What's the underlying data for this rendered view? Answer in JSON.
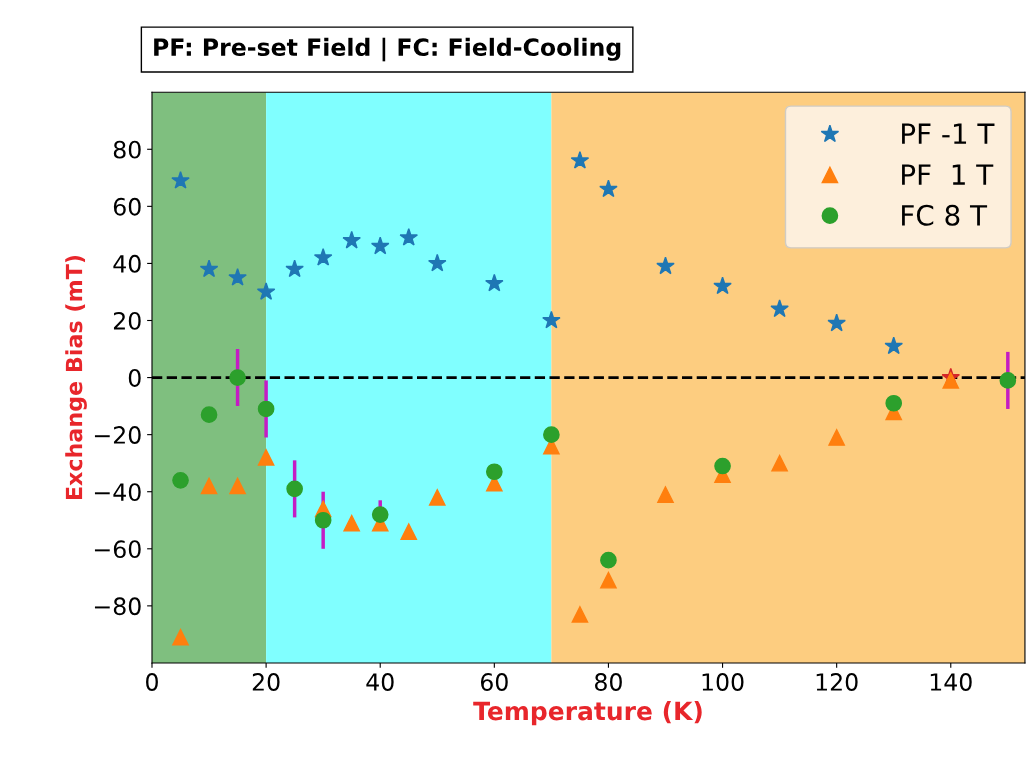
{
  "chart_data": {
    "type": "scatter",
    "title": "PF: Pre-set Field | FC: Field-Cooling",
    "xlabel": "Temperature (K)",
    "ylabel": "Exchange Bias (mT)",
    "xlim": [
      0,
      153
    ],
    "ylim": [
      -100,
      100
    ],
    "xticks": [
      0,
      20,
      40,
      60,
      80,
      100,
      120,
      140
    ],
    "yticks": [
      -80,
      -60,
      -40,
      -20,
      0,
      20,
      40,
      60,
      80
    ],
    "grid": false,
    "legend": "top right",
    "series": [
      {
        "name": "PF -1 T",
        "marker": "star",
        "color": "#1f77b4",
        "colors": [
          "#1f77b4",
          "#1f77b4",
          "#1f77b4",
          "#1f77b4",
          "#1f77b4",
          "#1f77b4",
          "#1f77b4",
          "#1f77b4",
          "#1f77b4",
          "#1f77b4",
          "#1f77b4",
          "#1f77b4",
          "#1f77b4",
          "#1f77b4",
          "#1f77b4",
          "#1f77b4",
          "#1f77b4",
          "#1f77b4",
          "#1f77b4",
          "#d62728"
        ],
        "x": [
          5,
          10,
          15,
          20,
          25,
          30,
          35,
          40,
          45,
          50,
          60,
          70,
          75,
          80,
          90,
          100,
          110,
          120,
          130,
          140
        ],
        "values": [
          69,
          38,
          35,
          30,
          38,
          42,
          48,
          46,
          49,
          40,
          33,
          20,
          76,
          66,
          39,
          32,
          24,
          19,
          11,
          0
        ]
      },
      {
        "name": "PF  1 T",
        "marker": "triangle",
        "color": "#ff7f0e",
        "x": [
          5,
          10,
          15,
          20,
          30,
          35,
          40,
          45,
          50,
          60,
          70,
          75,
          80,
          90,
          100,
          110,
          120,
          130,
          140
        ],
        "values": [
          -91,
          -38,
          -38,
          -28,
          -46,
          -51,
          -51,
          -54,
          -42,
          -37,
          -24,
          -83,
          -71,
          -41,
          -34,
          -30,
          -21,
          -12,
          -1
        ]
      },
      {
        "name": "FC 8 T",
        "marker": "circle",
        "color": "#2ca02c",
        "x": [
          5,
          10,
          15,
          20,
          25,
          30,
          40,
          60,
          70,
          80,
          100,
          130,
          150
        ],
        "values": [
          -36,
          -13,
          0,
          -11,
          -39,
          -50,
          -48,
          -33,
          -20,
          -64,
          -31,
          -9,
          -1
        ],
        "errors": [
          null,
          null,
          10,
          10,
          10,
          10,
          5,
          null,
          null,
          null,
          null,
          null,
          10
        ]
      }
    ],
    "ref_lines": [
      {
        "axis": "y",
        "value": 0,
        "color": "#000000",
        "line_style": "dashed"
      }
    ],
    "bands": [
      {
        "axis": "x",
        "from": 0,
        "to": 20,
        "color": "#7fbf7f"
      },
      {
        "axis": "x",
        "from": 20,
        "to": 70,
        "color": "#80ffff"
      },
      {
        "axis": "x",
        "from": 70,
        "to": 153,
        "color": "#fdcd80"
      }
    ]
  }
}
